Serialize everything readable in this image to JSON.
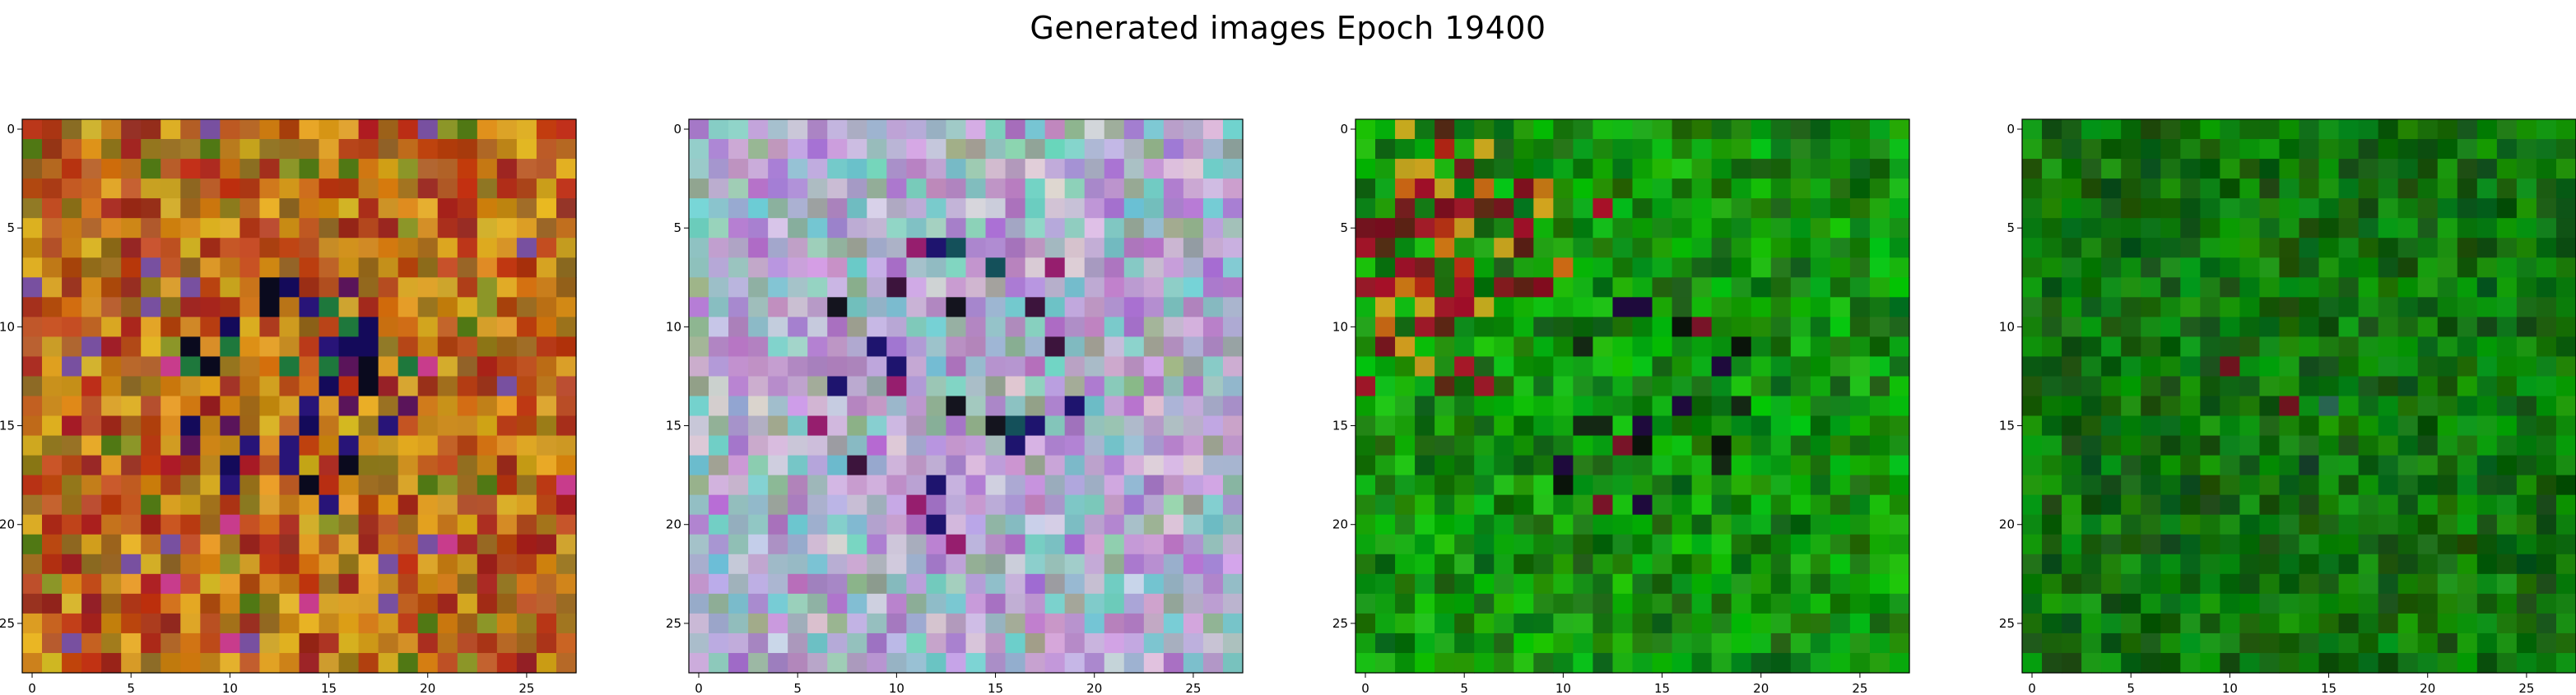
{
  "figure": {
    "suptitle": "Generated images Epoch 19400"
  },
  "chart_data": [
    {
      "type": "heatmap",
      "grid": [
        28,
        28
      ],
      "palette": "warm-orange-red-yellow-with-dark-blue-center",
      "xticks": [
        0,
        5,
        10,
        15,
        20,
        25
      ],
      "yticks": [
        0,
        5,
        10,
        15,
        20,
        25
      ],
      "xlim": [
        -0.5,
        27.5
      ],
      "ylim": [
        27.5,
        -0.5
      ]
    },
    {
      "type": "heatmap",
      "grid": [
        28,
        28
      ],
      "palette": "pastel-lilac-teal-with-dark-accents",
      "xticks": [
        0,
        5,
        10,
        15,
        20,
        25
      ],
      "yticks": [
        0,
        5,
        10,
        15,
        20,
        25
      ],
      "xlim": [
        -0.5,
        27.5
      ],
      "ylim": [
        27.5,
        -0.5
      ]
    },
    {
      "type": "heatmap",
      "grid": [
        28,
        28
      ],
      "palette": "green-with-orange-red-upper-left",
      "xticks": [
        0,
        5,
        10,
        15,
        20,
        25
      ],
      "yticks": [
        0,
        5,
        10,
        15,
        20,
        25
      ],
      "xlim": [
        -0.5,
        27.5
      ],
      "ylim": [
        27.5,
        -0.5
      ]
    },
    {
      "type": "heatmap",
      "grid": [
        28,
        28
      ],
      "palette": "mostly-dark-green",
      "xticks": [
        0,
        5,
        10,
        15,
        20,
        25
      ],
      "yticks": [
        0,
        5,
        10,
        15,
        20,
        25
      ],
      "xlim": [
        -0.5,
        27.5
      ],
      "ylim": [
        27.5,
        -0.5
      ]
    }
  ]
}
